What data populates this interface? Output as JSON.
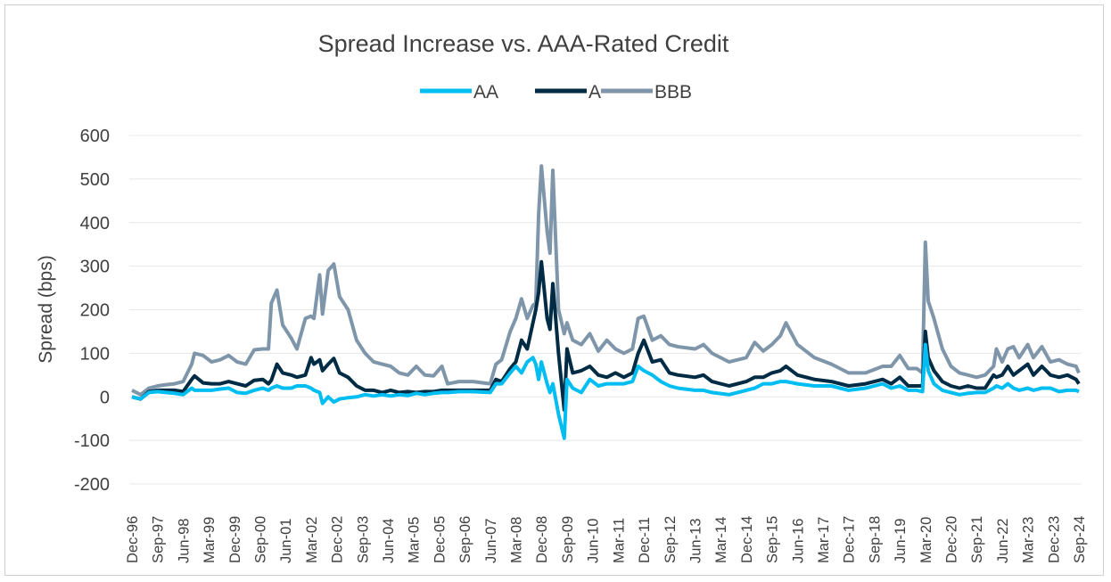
{
  "chart_data": {
    "type": "line",
    "title": "Spread Increase vs. AAA-Rated Credit",
    "ylabel": "Spread (bps)",
    "xlabel": "",
    "ylim": [
      -200,
      600
    ],
    "yticks": [
      -200,
      -100,
      0,
      100,
      200,
      300,
      400,
      500,
      600
    ],
    "xlim": [
      "1996-12",
      "2024-09"
    ],
    "grid": true,
    "legend": "top",
    "xtick_labels": [
      "Dec-96",
      "Sep-97",
      "Jun-98",
      "Mar-99",
      "Dec-99",
      "Sep-00",
      "Jun-01",
      "Mar-02",
      "Dec-02",
      "Sep-03",
      "Jun-04",
      "Mar-05",
      "Dec-05",
      "Sep-06",
      "Jun-07",
      "Mar-08",
      "Dec-08",
      "Sep-09",
      "Jun-10",
      "Mar-11",
      "Dec-11",
      "Sep-12",
      "Jun-13",
      "Mar-14",
      "Dec-14",
      "Sep-15",
      "Jun-16",
      "Mar-17",
      "Dec-17",
      "Sep-18",
      "Jun-19",
      "Mar-20",
      "Dec-20",
      "Sep-21",
      "Jun-22",
      "Mar-23",
      "Dec-23",
      "Sep-24"
    ],
    "x": [
      "1996-12",
      "1997-03",
      "1997-06",
      "1997-09",
      "1997-12",
      "1998-03",
      "1998-06",
      "1998-09",
      "1998-10",
      "1999-01",
      "1999-04",
      "1999-07",
      "1999-10",
      "2000-01",
      "2000-04",
      "2000-07",
      "2000-10",
      "2000-12",
      "2001-01",
      "2001-03",
      "2001-05",
      "2001-08",
      "2001-10",
      "2002-01",
      "2002-03",
      "2002-04",
      "2002-06",
      "2002-07",
      "2002-09",
      "2002-11",
      "2003-01",
      "2003-04",
      "2003-07",
      "2003-10",
      "2004-01",
      "2004-04",
      "2004-07",
      "2004-10",
      "2005-01",
      "2005-04",
      "2005-07",
      "2005-10",
      "2006-01",
      "2006-03",
      "2006-07",
      "2006-12",
      "2007-06",
      "2007-08",
      "2007-10",
      "2008-01",
      "2008-03",
      "2008-05",
      "2008-07",
      "2008-09",
      "2008-10",
      "2008-11",
      "2008-12",
      "2009-02",
      "2009-03",
      "2009-04",
      "2009-06",
      "2009-08",
      "2009-09",
      "2009-11",
      "2010-02",
      "2010-05",
      "2010-08",
      "2010-11",
      "2011-02",
      "2011-05",
      "2011-08",
      "2011-10",
      "2011-12",
      "2012-03",
      "2012-06",
      "2012-09",
      "2012-12",
      "2013-06",
      "2013-09",
      "2013-12",
      "2014-06",
      "2014-12",
      "2015-03",
      "2015-06",
      "2015-09",
      "2015-12",
      "2016-02",
      "2016-06",
      "2016-12",
      "2017-06",
      "2017-12",
      "2018-06",
      "2018-12",
      "2019-03",
      "2019-06",
      "2019-09",
      "2019-12",
      "2020-02",
      "2020-03",
      "2020-04",
      "2020-06",
      "2020-09",
      "2020-12",
      "2021-03",
      "2021-06",
      "2021-09",
      "2021-12",
      "2022-03",
      "2022-04",
      "2022-06",
      "2022-08",
      "2022-10",
      "2022-12",
      "2023-03",
      "2023-05",
      "2023-08",
      "2023-11",
      "2024-02",
      "2024-05",
      "2024-08",
      "2024-09"
    ],
    "series": [
      {
        "name": "AA",
        "color": "#00BDF2",
        "values": [
          0,
          -5,
          10,
          12,
          10,
          8,
          5,
          20,
          15,
          15,
          15,
          18,
          20,
          10,
          8,
          15,
          20,
          15,
          20,
          25,
          20,
          20,
          25,
          25,
          20,
          15,
          10,
          -15,
          0,
          -12,
          -5,
          -2,
          0,
          5,
          2,
          5,
          2,
          5,
          3,
          8,
          5,
          8,
          10,
          10,
          12,
          12,
          10,
          30,
          30,
          55,
          70,
          55,
          80,
          90,
          75,
          40,
          80,
          30,
          10,
          30,
          -40,
          -95,
          40,
          20,
          10,
          40,
          25,
          30,
          30,
          30,
          35,
          70,
          60,
          50,
          35,
          25,
          20,
          15,
          15,
          10,
          5,
          15,
          20,
          30,
          30,
          35,
          35,
          30,
          25,
          25,
          15,
          20,
          30,
          20,
          25,
          15,
          15,
          12,
          120,
          60,
          30,
          15,
          10,
          5,
          8,
          10,
          10,
          20,
          25,
          20,
          30,
          20,
          15,
          20,
          15,
          20,
          20,
          12,
          15,
          15,
          12
        ]
      },
      {
        "name": "A",
        "color": "#002B45",
        "values": [
          0,
          -5,
          12,
          15,
          15,
          15,
          12,
          40,
          48,
          32,
          30,
          30,
          35,
          30,
          25,
          38,
          40,
          30,
          38,
          75,
          55,
          50,
          45,
          50,
          90,
          75,
          85,
          60,
          75,
          88,
          55,
          45,
          25,
          15,
          15,
          10,
          15,
          10,
          12,
          10,
          12,
          12,
          15,
          15,
          15,
          15,
          15,
          40,
          35,
          65,
          80,
          130,
          110,
          170,
          200,
          240,
          310,
          180,
          155,
          260,
          100,
          -30,
          110,
          55,
          60,
          70,
          50,
          45,
          55,
          45,
          55,
          100,
          130,
          80,
          85,
          55,
          50,
          45,
          50,
          35,
          25,
          35,
          45,
          45,
          55,
          60,
          70,
          50,
          40,
          35,
          25,
          30,
          40,
          30,
          45,
          25,
          25,
          25,
          150,
          90,
          60,
          35,
          25,
          20,
          25,
          20,
          20,
          50,
          45,
          50,
          70,
          50,
          60,
          75,
          50,
          70,
          50,
          45,
          50,
          40,
          30
        ]
      },
      {
        "name": "BBB",
        "color": "#7F96AA",
        "values": [
          15,
          5,
          20,
          25,
          28,
          30,
          35,
          75,
          100,
          95,
          80,
          85,
          95,
          80,
          75,
          108,
          110,
          110,
          215,
          245,
          165,
          135,
          110,
          180,
          185,
          180,
          280,
          190,
          290,
          305,
          230,
          200,
          130,
          100,
          80,
          75,
          70,
          55,
          50,
          70,
          50,
          48,
          70,
          30,
          35,
          35,
          30,
          75,
          85,
          150,
          180,
          225,
          180,
          210,
          215,
          420,
          530,
          380,
          330,
          520,
          200,
          145,
          170,
          130,
          120,
          145,
          105,
          130,
          110,
          100,
          110,
          180,
          185,
          130,
          140,
          120,
          115,
          110,
          120,
          100,
          80,
          90,
          125,
          105,
          120,
          140,
          170,
          120,
          90,
          75,
          55,
          55,
          70,
          70,
          95,
          65,
          65,
          55,
          355,
          220,
          180,
          110,
          70,
          55,
          50,
          45,
          50,
          70,
          110,
          80,
          110,
          115,
          90,
          120,
          90,
          115,
          80,
          85,
          75,
          70,
          55
        ]
      }
    ]
  }
}
